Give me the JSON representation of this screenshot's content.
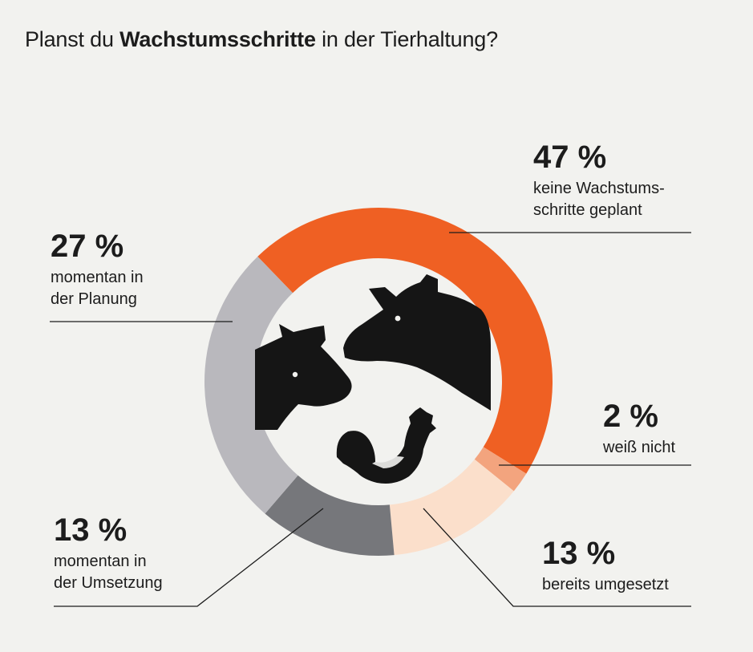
{
  "title": {
    "prefix": "Planst du",
    "bold": "Wachstumsschritte",
    "suffix": "in der Tierhaltung?"
  },
  "chart_data": {
    "type": "pie",
    "style": "donut",
    "start_order": "clockwise-from-top",
    "categories": [
      "keine Wachstumsschritte geplant",
      "weiß nicht",
      "bereits umgesetzt",
      "momentan in der Umsetzung",
      "momentan in der Planung"
    ],
    "values": [
      47,
      2,
      13,
      13,
      27
    ],
    "unit": "%",
    "colors": [
      "#ef6023",
      "#f3a47e",
      "#fbdfcb",
      "#76777b",
      "#b9b8bd"
    ],
    "labels": [
      {
        "value": "47 %",
        "lines": [
          "keine Wachstums-",
          "schritte geplant"
        ]
      },
      {
        "value": "2 %",
        "lines": [
          "weiß nicht"
        ]
      },
      {
        "value": "13 %",
        "lines": [
          "bereits umgesetzt"
        ]
      },
      {
        "value": "13 %",
        "lines": [
          "momentan in",
          "der Umsetzung"
        ]
      },
      {
        "value": "27 %",
        "lines": [
          "momentan in",
          "der Planung"
        ]
      }
    ],
    "center_icons": [
      "pig-icon",
      "cow-icon",
      "rooster-icon"
    ],
    "leader_line_color": "#1c1c1c"
  }
}
